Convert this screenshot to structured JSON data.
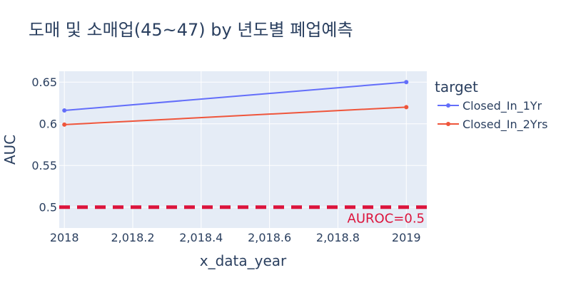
{
  "chart_data": {
    "type": "line",
    "title": "도매 및 소매업(45~47) by 년도별 폐업예측",
    "xlabel": "x_data_year",
    "ylabel": "AUC",
    "xlim": [
      2017.985,
      2019.06
    ],
    "ylim": [
      0.475,
      0.663
    ],
    "x_ticks": [
      2018,
      2018.2,
      2018.4,
      2018.6,
      2018.8,
      2019
    ],
    "x_tick_labels": [
      "2018",
      "2,018.2",
      "2,018.4",
      "2,018.6",
      "2,018.8",
      "2019"
    ],
    "y_ticks": [
      0.5,
      0.55,
      0.6,
      0.65
    ],
    "y_tick_labels": [
      "0.5",
      "0.55",
      "0.6",
      "0.65"
    ],
    "legend_title": "target",
    "legend_position": "right",
    "grid": true,
    "series": [
      {
        "name": "Closed_In_1Yr",
        "color": "#636efa",
        "x": [
          2018,
          2019
        ],
        "y": [
          0.616,
          0.65
        ]
      },
      {
        "name": "Closed_In_2Yrs",
        "color": "#ef553b",
        "x": [
          2018,
          2019
        ],
        "y": [
          0.599,
          0.62
        ]
      }
    ],
    "reference_line": {
      "y": 0.5,
      "label": "AUROC=0.5",
      "color": "#dc143c",
      "style": "dashed"
    },
    "colors": {
      "plot_bg": "#e5ecf6",
      "grid": "#ffffff",
      "text": "#2a3f5f"
    }
  }
}
